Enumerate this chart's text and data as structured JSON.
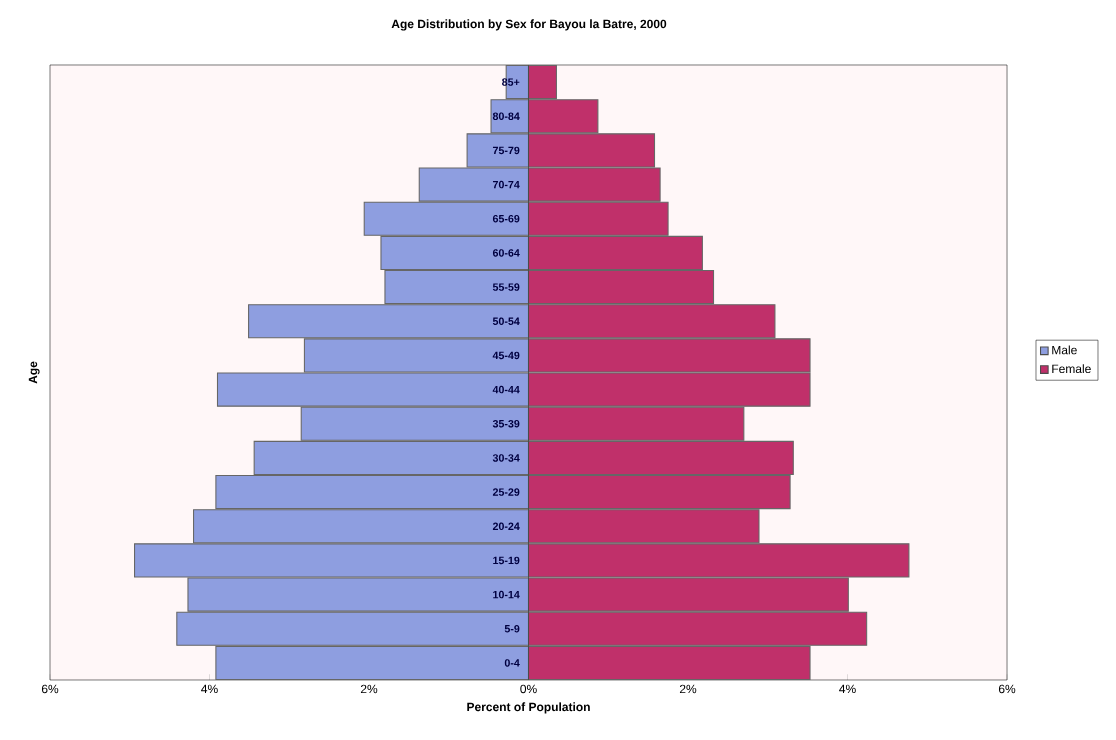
{
  "chart_data": {
    "type": "bar",
    "orientation": "horizontal",
    "title": "Age Distribution by Sex for Bayou la Batre, 2000",
    "xlabel": "Percent of Population",
    "ylabel": "Age",
    "categories": [
      "85+",
      "80-84",
      "75-79",
      "70-74",
      "65-69",
      "60-64",
      "55-59",
      "50-54",
      "45-49",
      "40-44",
      "35-39",
      "30-34",
      "25-29",
      "20-24",
      "15-19",
      "10-14",
      "5-9",
      "0-4"
    ],
    "series": [
      {
        "name": "Male",
        "color": "#8e9ee0",
        "values": [
          -0.28,
          -0.47,
          -0.77,
          -1.37,
          -2.06,
          -1.85,
          -1.8,
          -3.51,
          -2.81,
          -3.9,
          -2.85,
          -3.44,
          -3.92,
          -4.2,
          -4.94,
          -4.27,
          -4.41,
          -3.92
        ]
      },
      {
        "name": "Female",
        "color": "#c0306a",
        "values": [
          0.35,
          0.87,
          1.58,
          1.65,
          1.75,
          2.18,
          2.32,
          3.09,
          3.53,
          3.53,
          2.7,
          3.32,
          3.28,
          2.89,
          4.77,
          4.01,
          4.24,
          3.53
        ]
      }
    ],
    "xlim": [
      -6,
      6
    ],
    "xticks": [
      {
        "value": -6,
        "label": "6%"
      },
      {
        "value": -4,
        "label": "4%"
      },
      {
        "value": -2,
        "label": "2%"
      },
      {
        "value": 0,
        "label": "0%"
      },
      {
        "value": 2,
        "label": "2%"
      },
      {
        "value": 4,
        "label": "4%"
      },
      {
        "value": 6,
        "label": "6%"
      }
    ],
    "legend": "right",
    "stacked": true
  }
}
